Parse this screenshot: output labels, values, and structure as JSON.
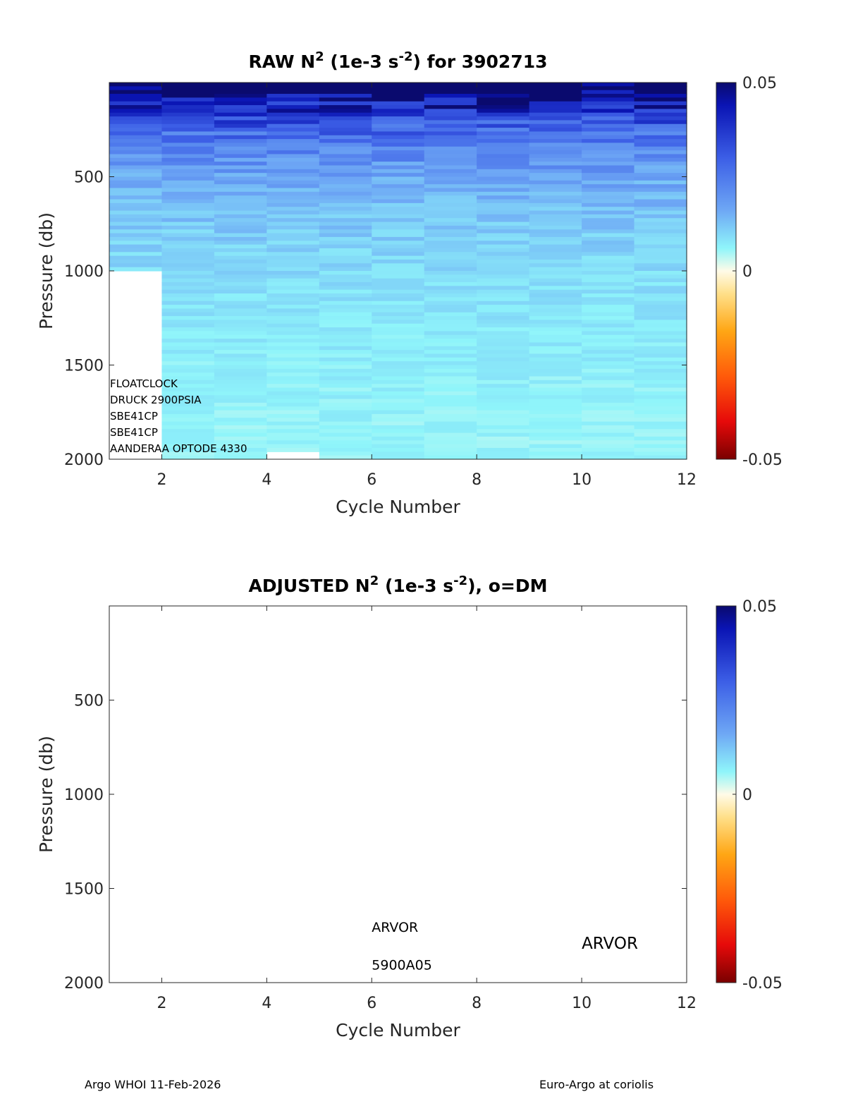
{
  "chart_data": [
    {
      "type": "heatmap",
      "title_parts": [
        "RAW N",
        "2",
        " (1e-3 s",
        "-2",
        ") for 3902713"
      ],
      "xlabel": "Cycle Number",
      "ylabel": "Pressure (db)",
      "xlim": [
        1,
        12
      ],
      "ylim": [
        0,
        2000
      ],
      "y_reversed": true,
      "xticks": [
        2,
        4,
        6,
        8,
        10,
        12
      ],
      "yticks": [
        500,
        1000,
        1500,
        2000
      ],
      "colorbar": {
        "range": [
          -0.05,
          0.05
        ],
        "ticks": [
          {
            "value": 0.05,
            "label": "0.05"
          },
          {
            "value": 0,
            "label": "0"
          },
          {
            "value": -0.05,
            "label": "-0.05"
          }
        ]
      },
      "profiles": [
        {
          "cycle": 1,
          "max_pressure": 990
        },
        {
          "cycle": 2,
          "max_pressure": 1990
        },
        {
          "cycle": 3,
          "max_pressure": 1990
        },
        {
          "cycle": 4,
          "max_pressure": 1960
        },
        {
          "cycle": 5,
          "max_pressure": 2000
        },
        {
          "cycle": 6,
          "max_pressure": 2000
        },
        {
          "cycle": 7,
          "max_pressure": 2000
        },
        {
          "cycle": 8,
          "max_pressure": 2000
        },
        {
          "cycle": 9,
          "max_pressure": 2000
        },
        {
          "cycle": 10,
          "max_pressure": 1990
        },
        {
          "cycle": 11,
          "max_pressure": 2000
        }
      ],
      "sensor_labels": [
        "FLOATCLOCK",
        "DRUCK 2900PSIA",
        "SBE41CP",
        "SBE41CP",
        "AANDERAA OPTODE 4330"
      ]
    },
    {
      "type": "heatmap",
      "title_parts": [
        "ADJUSTED N",
        "2",
        " (1e-3 s",
        "-2",
        "), o=DM"
      ],
      "xlabel": "Cycle Number",
      "ylabel": "Pressure (db)",
      "xlim": [
        1,
        12
      ],
      "ylim": [
        0,
        2000
      ],
      "y_reversed": true,
      "xticks": [
        2,
        4,
        6,
        8,
        10,
        12
      ],
      "yticks": [
        500,
        1000,
        1500,
        2000
      ],
      "colorbar": {
        "range": [
          -0.05,
          0.05
        ],
        "ticks": [
          {
            "value": 0.05,
            "label": "0.05"
          },
          {
            "value": 0,
            "label": "0"
          },
          {
            "value": -0.05,
            "label": "-0.05"
          }
        ]
      },
      "profiles": [],
      "annotations": [
        {
          "text": "ARVOR",
          "x": 6,
          "y": 1730,
          "size": "normal"
        },
        {
          "text": "5900A05",
          "x": 6,
          "y": 1930,
          "size": "normal"
        },
        {
          "text": "ARVOR",
          "x": 10,
          "y": 1820,
          "size": "large"
        }
      ]
    }
  ],
  "footer": {
    "left": "Argo WHOI 11-Feb-2026",
    "right": "Euro-Argo at coriolis"
  }
}
